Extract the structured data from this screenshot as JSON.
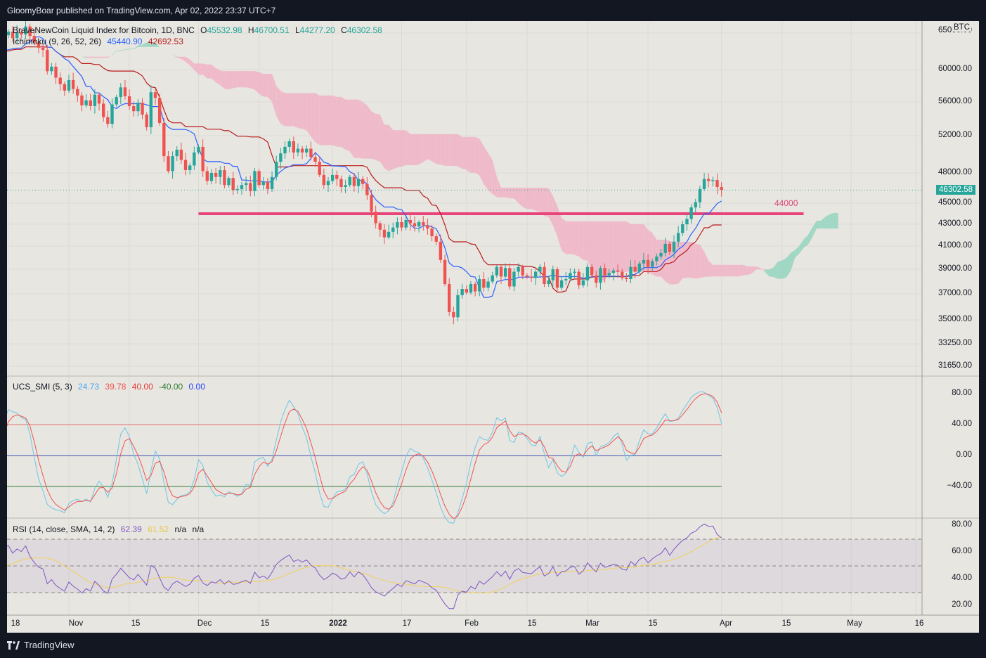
{
  "header": {
    "published": "GloomyBoar published on TradingView.com, Apr 02, 2022 23:37 UTC+7"
  },
  "footer": {
    "brand": "TradingView"
  },
  "colors": {
    "up": "#26a69a",
    "down": "#ef5350",
    "kumo_bull": "#94d3c0",
    "kumo_bear": "#f0b3c6",
    "level": "#e8437a",
    "tenkan": "#2962ff",
    "kijun": "#b71c1c",
    "smi": "#6ec6e6",
    "smi_signal": "#ef5350",
    "rsi": "#7e57c2",
    "rsi_ma": "#f2d15c"
  },
  "legend": {
    "main": {
      "name": "BraveNewCoin Liquid Index for Bitcoin, 1D, BNC",
      "o_label": "O",
      "o": "45532.98",
      "h_label": "H",
      "h": "46700.51",
      "l_label": "L",
      "l": "44277.20",
      "c_label": "C",
      "c": "46302.58"
    },
    "ichimoku": {
      "name": "Ichimoku (9, 26, 52, 26)",
      "v1": "45440.90",
      "v2": "42692.53"
    },
    "smi": {
      "name": "UCS_SMI (5, 3)",
      "v1": "24.73",
      "v2": "39.78",
      "v3": "40.00",
      "v4": "-40.00",
      "v5": "0.00"
    },
    "rsi": {
      "name": "RSI (14, close, SMA, 14, 2)",
      "v1": "62.39",
      "v2": "61.52",
      "v3": "n/a",
      "v4": "n/a"
    }
  },
  "chart_data": [
    {
      "type": "candlestick",
      "currency": "BTC",
      "last_price": "46302.58",
      "level_label": "44000",
      "level": 44000,
      "y_ticks": [
        "65000.00",
        "60000.00",
        "56000.00",
        "52000.00",
        "48000.00",
        "45000.00",
        "43000.00",
        "41000.00",
        "39000.00",
        "37000.00",
        "35000.00",
        "33250.00",
        "31650.00"
      ],
      "x_ticks": [
        {
          "label": "18",
          "day": -14
        },
        {
          "label": "Nov",
          "day": 0
        },
        {
          "label": "15",
          "day": 14
        },
        {
          "label": "Dec",
          "day": 30
        },
        {
          "label": "15",
          "day": 44
        },
        {
          "label": "2022",
          "day": 61,
          "bold": true
        },
        {
          "label": "17",
          "day": 77
        },
        {
          "label": "Feb",
          "day": 92
        },
        {
          "label": "15",
          "day": 106
        },
        {
          "label": "Mar",
          "day": 120
        },
        {
          "label": "15",
          "day": 134
        },
        {
          "label": "Apr",
          "day": 151
        },
        {
          "label": "15",
          "day": 165
        },
        {
          "label": "May",
          "day": 181
        },
        {
          "label": "16",
          "day": 196
        }
      ],
      "closes": [
        62000,
        61200,
        61800,
        62500,
        63200,
        61500,
        61000,
        60800,
        61700,
        61400,
        60400,
        61300,
        62700,
        62000,
        61800,
        61600,
        60900,
        60700,
        61500,
        62300,
        63500,
        64700,
        65200,
        64300,
        65100,
        64800,
        65900,
        64600,
        63700,
        63000,
        62700,
        59800,
        60400,
        59000,
        58200,
        57400,
        58700,
        57600,
        56800,
        55600,
        56200,
        55500,
        56900,
        55800,
        54200,
        53400,
        55700,
        56600,
        57800,
        56700,
        55500,
        54900,
        55900,
        54500,
        53000,
        57200,
        56500,
        53500,
        49800,
        48200,
        49800,
        50500,
        49400,
        48300,
        48800,
        50200,
        50800,
        48200,
        47200,
        48000,
        47600,
        48300,
        46800,
        47500,
        46300,
        46400,
        46800,
        47000,
        46200,
        48200,
        46800,
        47100,
        46400,
        47600,
        49200,
        50100,
        50800,
        51400,
        50200,
        50600,
        50200,
        50600,
        49700,
        49200,
        47800,
        46800,
        47200,
        47800,
        47400,
        46600,
        46800,
        47600,
        46700,
        47400,
        46900,
        45800,
        44200,
        43100,
        42500,
        41800,
        42300,
        42700,
        43200,
        42700,
        43400,
        43100,
        42800,
        43200,
        42900,
        42600,
        41900,
        41400,
        39800,
        37800,
        35600,
        35200,
        36900,
        37400,
        37100,
        37800,
        37200,
        38200,
        37500,
        38000,
        38500,
        39200,
        38400,
        39100,
        37600,
        38800,
        39200,
        38500,
        38400,
        38300,
        38800,
        39200,
        37800,
        38100,
        39000,
        37500,
        38100,
        38200,
        38700,
        38800,
        37700,
        38100,
        39200,
        38500,
        37900,
        39100,
        38500,
        38700,
        38900,
        38800,
        38300,
        38200,
        39200,
        38800,
        39500,
        39800,
        39200,
        39700,
        40100,
        40400,
        41200,
        40500,
        41400,
        42200,
        43000,
        43500,
        44600,
        45100,
        46400,
        47400,
        47200,
        47300,
        46600,
        46302.58
      ],
      "ichimoku_levels": {
        "tenkan_last": 45440.9,
        "kijun_last": 42692.53
      }
    },
    {
      "type": "line",
      "name": "UCS_SMI (5, 3)",
      "y_ticks": [
        "80.00",
        "40.00",
        "0.00",
        "−40.00"
      ],
      "levels": [
        40,
        0,
        -40
      ],
      "last": [
        24.73,
        39.78
      ]
    },
    {
      "type": "line",
      "name": "RSI (14, close, SMA, 14, 2)",
      "y_ticks": [
        "80.00",
        "60.00",
        "40.00",
        "20.00"
      ],
      "band": [
        30,
        70
      ],
      "mid": 50,
      "last": [
        62.39,
        61.52
      ]
    }
  ]
}
